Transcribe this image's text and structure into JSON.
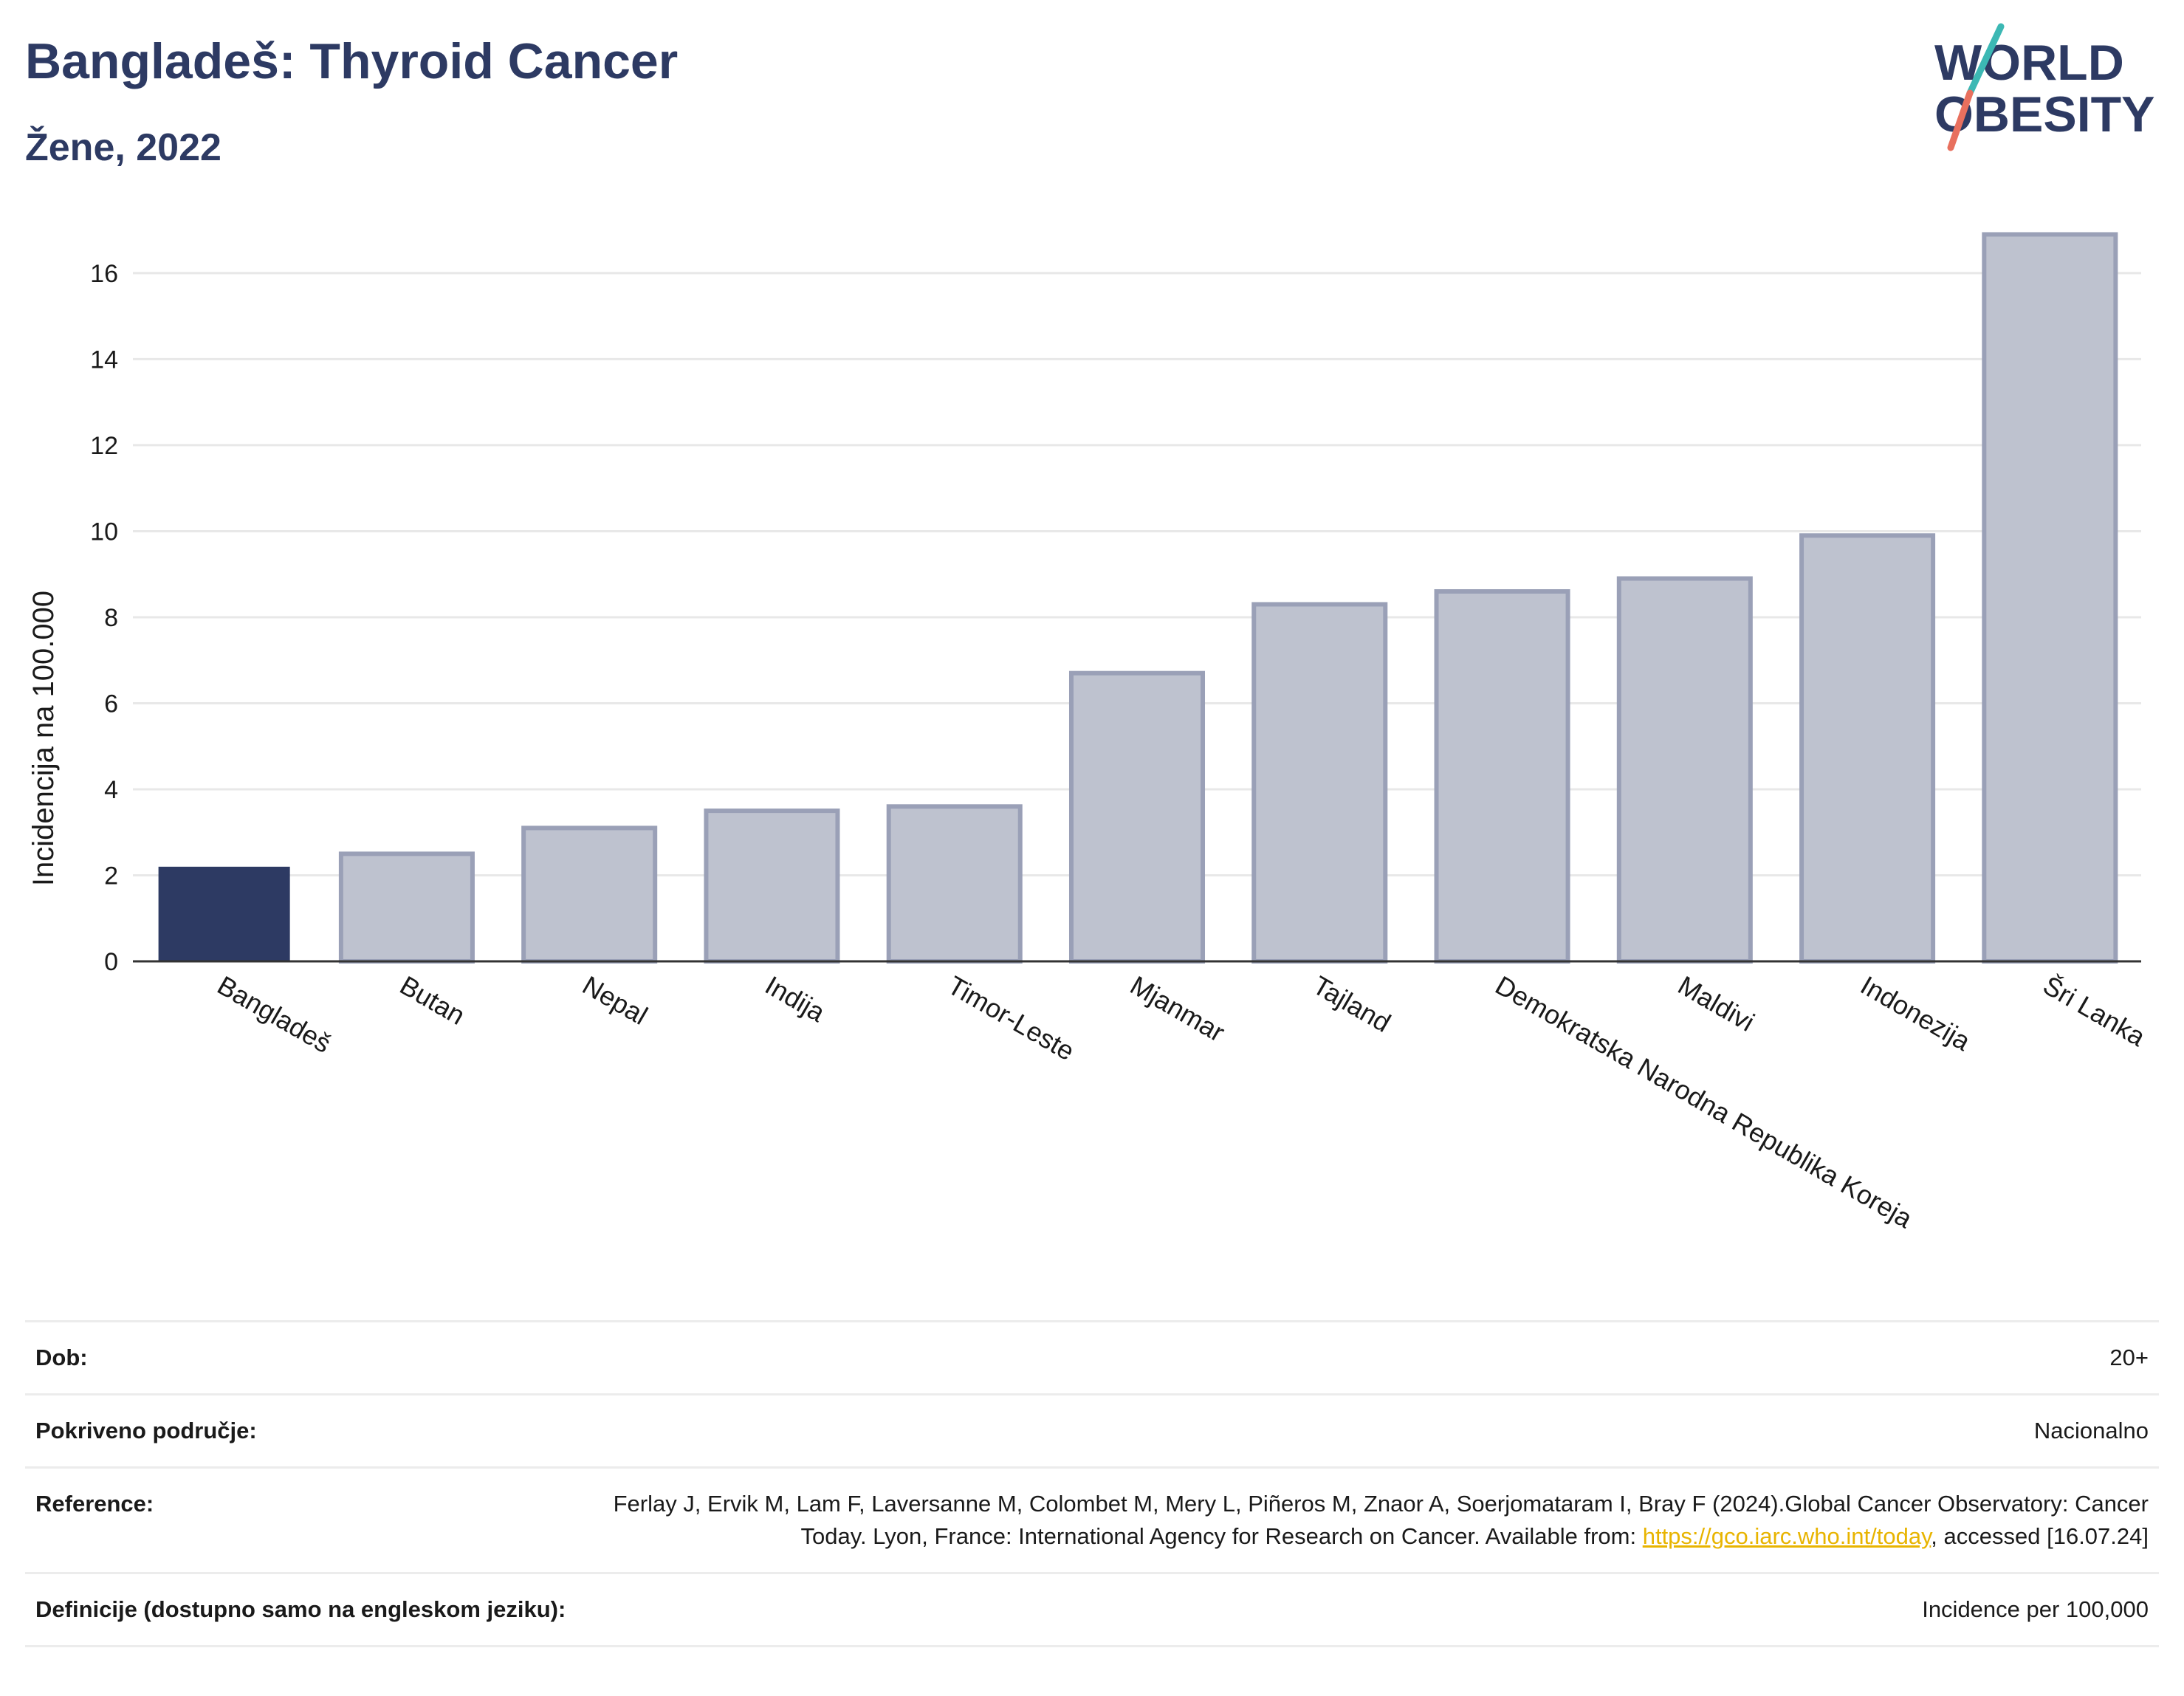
{
  "header": {
    "title": "Bangladeš: Thyroid Cancer",
    "subtitle": "Žene, 2022",
    "logo_text_line1": "WORLD",
    "logo_text_line2": "OBESITY"
  },
  "chart_data": {
    "type": "bar",
    "title": "Bangladeš: Thyroid Cancer",
    "subtitle": "Žene, 2022",
    "ylabel": "Incidencija na 100.000",
    "xlabel": "",
    "ylim": [
      0,
      17.2
    ],
    "yticks": [
      0,
      2,
      4,
      6,
      8,
      10,
      12,
      14,
      16
    ],
    "grid": true,
    "categories": [
      "Bangladeš",
      "Butan",
      "Nepal",
      "Indija",
      "Timor-Leste",
      "Mjanmar",
      "Tajland",
      "Demokratska Narodna Republika Koreja",
      "Maldivi",
      "Indonezija",
      "Šri Lanka"
    ],
    "values": [
      2.2,
      2.5,
      3.1,
      3.5,
      3.6,
      6.7,
      8.3,
      8.6,
      8.9,
      9.9,
      16.9
    ],
    "highlight": "Bangladeš",
    "colors": {
      "highlight": "#2d3a63",
      "other_fill": "#bec2cf",
      "other_stroke": "#9aa0b7"
    }
  },
  "meta": {
    "rows": [
      {
        "label": "Dob:",
        "value": "20+"
      },
      {
        "label": "Pokriveno područje:",
        "value": "Nacionalno"
      },
      {
        "label": "Reference:",
        "value_before": "Ferlay J, Ervik M, Lam F, Laversanne M, Colombet M, Mery L, Piñeros M, Znaor A, Soerjomataram I, Bray F (2024).Global Cancer Observatory: Cancer Today. Lyon, France: International Agency for Research on Cancer. Available from: ",
        "link": "https://gco.iarc.who.int/today",
        "value_after": ", accessed [16.07.24]"
      },
      {
        "label": "Definicije (dostupno samo na engleskom jeziku):",
        "value": "Incidence per 100,000"
      }
    ]
  }
}
